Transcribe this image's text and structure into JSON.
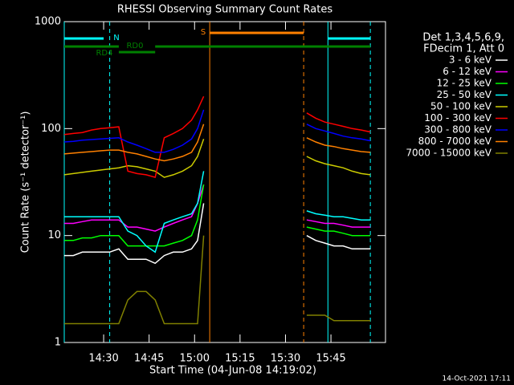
{
  "chart_data": {
    "type": "line",
    "title": "RHESSI Observing Summary Count Rates",
    "xlabel": "Start Time (04-Jun-08 14:19:02)",
    "ylabel": "Count Rate (s⁻¹ detector⁻¹)",
    "footer": "14-Oct-2021 17:11",
    "legend_header": [
      "Det 1,3,4,5,6,9,",
      "FDecim 1, Att 0"
    ],
    "legend": "right",
    "ylog": true,
    "ylim": [
      1,
      1000
    ],
    "yticks": [
      1,
      10,
      100,
      1000
    ],
    "xlim": [
      "14:17",
      "16:03"
    ],
    "xticks": [
      "14:30",
      "14:45",
      "15:00",
      "15:15",
      "15:30",
      "15:45"
    ],
    "x": [
      "14:17",
      "14:20",
      "14:23",
      "14:26",
      "14:29",
      "14:32",
      "14:35",
      "14:38",
      "14:41",
      "14:44",
      "14:47",
      "14:50",
      "14:53",
      "14:56",
      "14:59",
      "15:01",
      "15:03",
      "15:20",
      "15:37",
      "15:40",
      "15:43",
      "15:46",
      "15:49",
      "15:52",
      "15:55",
      "15:58"
    ],
    "series": [
      {
        "name": "3 - 6 keV",
        "color": "#ffffff",
        "values": [
          6.5,
          6.5,
          7,
          7,
          7,
          7,
          7.5,
          6,
          6,
          6,
          5.5,
          6.5,
          7,
          7,
          7.5,
          9,
          20,
          null,
          10,
          9,
          8.5,
          8,
          8,
          7.5,
          7.5,
          7.5
        ]
      },
      {
        "name": "6 - 12 keV",
        "color": "#ff00ff",
        "values": [
          13,
          13,
          13.5,
          14,
          14,
          14,
          14,
          12,
          12,
          11.5,
          11,
          12,
          13,
          14,
          15,
          20,
          30,
          null,
          14,
          13.5,
          13,
          13,
          12.5,
          12,
          12,
          12
        ]
      },
      {
        "name": "12 - 25 keV",
        "color": "#00ff00",
        "values": [
          9,
          9,
          9.5,
          9.5,
          10,
          10,
          10,
          8,
          8,
          8,
          8,
          8,
          8.5,
          9,
          10,
          14,
          30,
          null,
          12,
          11.5,
          11,
          11,
          10.5,
          10,
          10,
          10
        ]
      },
      {
        "name": "25 - 50 keV",
        "color": "#00ffff",
        "values": [
          15,
          15,
          15,
          15,
          15,
          15,
          15,
          11,
          10,
          8,
          7,
          13,
          14,
          15,
          16,
          20,
          40,
          null,
          17,
          16,
          15.5,
          15,
          15,
          14.5,
          14,
          14
        ]
      },
      {
        "name": "50 - 100 keV",
        "color": "#cccc00",
        "values": [
          37,
          38,
          39,
          40,
          41,
          42,
          43,
          45,
          44,
          42,
          40,
          35,
          37,
          40,
          45,
          55,
          80,
          null,
          55,
          50,
          47,
          45,
          43,
          40,
          38,
          37
        ]
      },
      {
        "name": "100 - 300 keV",
        "color": "#ff0000",
        "values": [
          88,
          90,
          92,
          97,
          100,
          102,
          104,
          40,
          38,
          37,
          35,
          82,
          90,
          100,
          120,
          150,
          200,
          null,
          140,
          125,
          115,
          110,
          105,
          100,
          97,
          93
        ]
      },
      {
        "name": "300 - 800 keV",
        "color": "#0000ff",
        "values": [
          75,
          76,
          78,
          79,
          80,
          81,
          82,
          75,
          70,
          65,
          60,
          60,
          64,
          70,
          80,
          100,
          150,
          null,
          110,
          100,
          95,
          90,
          85,
          82,
          80,
          77
        ]
      },
      {
        "name": "800 - 7000 keV",
        "color": "#ff8000",
        "values": [
          58,
          59,
          60,
          61,
          62,
          63,
          63,
          60,
          58,
          55,
          52,
          50,
          52,
          55,
          60,
          75,
          110,
          null,
          82,
          75,
          70,
          68,
          65,
          63,
          61,
          60
        ]
      },
      {
        "name": "7000 - 15000 keV",
        "color": "#808000",
        "values": [
          1.5,
          1.5,
          1.5,
          1.5,
          1.5,
          1.5,
          1.5,
          2.5,
          3,
          3,
          2.5,
          1.5,
          1.5,
          1.5,
          1.5,
          1.5,
          10,
          null,
          1.8,
          1.8,
          1.8,
          1.6,
          1.6,
          1.6,
          1.6,
          1.6
        ]
      }
    ],
    "markers": [
      {
        "time": "14:17",
        "color": "#00ffff",
        "style": "solid"
      },
      {
        "time": "14:32",
        "color": "#00ffff",
        "style": "dashed"
      },
      {
        "time": "15:05",
        "color": "#ff8000",
        "style": "solid"
      },
      {
        "time": "15:36",
        "color": "#ff8000",
        "style": "dashed"
      },
      {
        "time": "15:44",
        "color": "#00ffff",
        "style": "solid"
      },
      {
        "time": "15:58",
        "color": "#00ffff",
        "style": "dashed"
      }
    ],
    "flags": [
      {
        "label": "N",
        "color": "#00ffff",
        "spans": [
          [
            "14:17",
            "14:30"
          ],
          [
            "15:44",
            "15:58"
          ]
        ]
      },
      {
        "label": "S",
        "color": "#ff8000",
        "spans": [
          [
            "15:05",
            "15:36"
          ]
        ]
      },
      {
        "label": "RD4",
        "color": "#008000",
        "spans": [
          [
            "14:17",
            "14:35"
          ],
          [
            "14:47",
            "15:58"
          ]
        ]
      },
      {
        "label": "RD0",
        "color": "#008000",
        "spans": [
          [
            "14:35",
            "14:47"
          ]
        ]
      }
    ]
  }
}
